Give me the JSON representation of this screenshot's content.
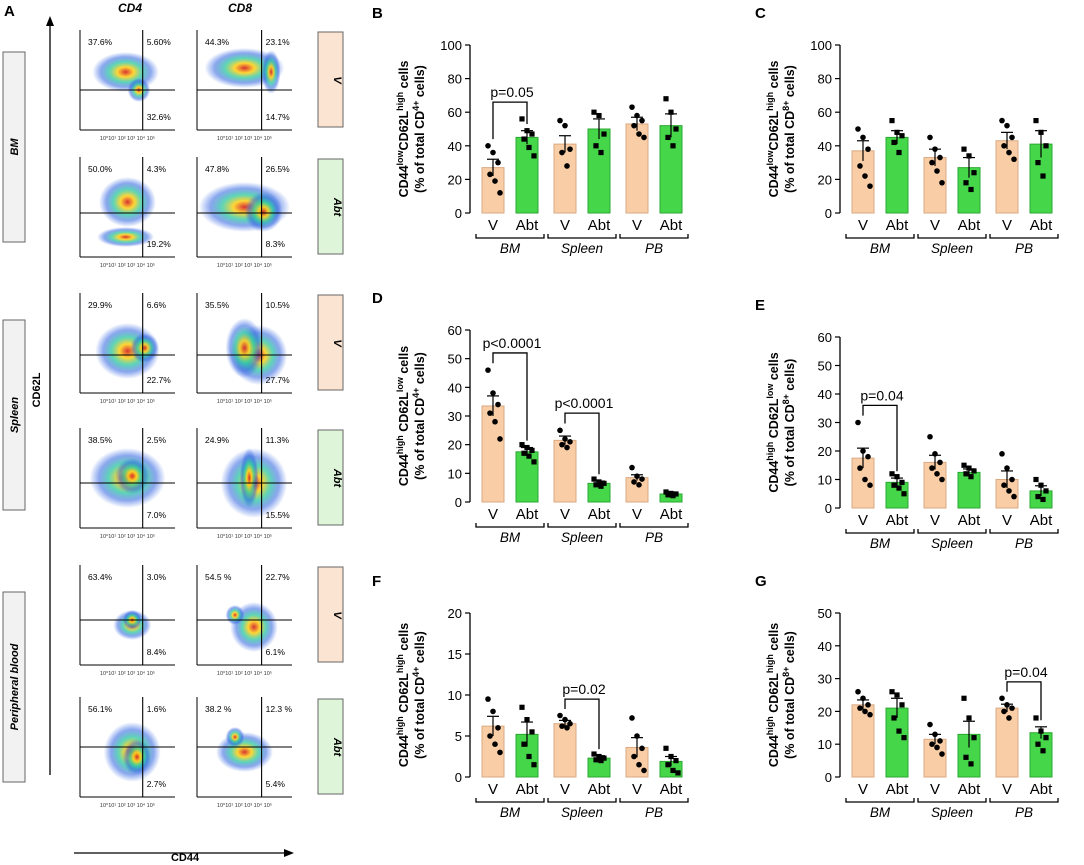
{
  "colors": {
    "vehicle_fill": "#f9cda5",
    "vehicle_stroke": "#d9a982",
    "abt_fill": "#45d64a",
    "abt_stroke": "#2aa830",
    "axis": "#000000",
    "group_label_bg": "#f2f2f2",
    "v_label_bg": "#fce4d2",
    "abt_label_bg": "#dff5d9"
  },
  "panel_a": {
    "letter": "A",
    "col_labels": [
      "CD4",
      "CD8"
    ],
    "y_axis_label": "CD62L",
    "x_axis_label": "CD44",
    "tick_label": "10⁰10¹ 10² 10³ 10⁴ 10⁵",
    "groups": [
      {
        "label": "BM",
        "name": "group-label-bm"
      },
      {
        "label": "Spleen",
        "name": "group-label-spleen"
      },
      {
        "label": "Peripheral blood",
        "name": "group-label-peripheral-blood"
      }
    ],
    "rows": [
      {
        "treatment": "V",
        "cd4": {
          "ul": "37.6%",
          "ur": "5.60%",
          "lr": "32.6%"
        },
        "cd8": {
          "ul": "44.3%",
          "ur": "23.1%",
          "lr": "14.7%"
        }
      },
      {
        "treatment": "Abt",
        "cd4": {
          "ul": "50.0%",
          "ur": "4.3%",
          "lr": "19.2%"
        },
        "cd8": {
          "ul": "47.8%",
          "ur": "26.5%",
          "lr": "8.3%"
        }
      },
      {
        "treatment": "V",
        "cd4": {
          "ul": "29.9%",
          "ur": "6.6%",
          "lr": "22.7%"
        },
        "cd8": {
          "ul": "35.5%",
          "ur": "10.5%",
          "lr": "27.7%"
        }
      },
      {
        "treatment": "Abt",
        "cd4": {
          "ul": "38.5%",
          "ur": "2.5%",
          "lr": "7.0%"
        },
        "cd8": {
          "ul": "24.9%",
          "ur": "11.3%",
          "lr": "15.5%"
        }
      },
      {
        "treatment": "V",
        "cd4": {
          "ul": "63.4%",
          "ur": "3.0%",
          "lr": "8.4%"
        },
        "cd8": {
          "ul": "54.5 %",
          "ur": "22.7%",
          "lr": "6.1%"
        }
      },
      {
        "treatment": "Abt",
        "cd4": {
          "ul": "56.1%",
          "ur": "1.6%",
          "lr": "2.7%"
        },
        "cd8": {
          "ul": "38.2 %",
          "ur": "12.3 %",
          "lr": "5.4%"
        }
      }
    ]
  },
  "chart_data": [
    {
      "panel": "B",
      "type": "bar",
      "ylabel": "CD44lowCD62Lhigh cells (% of total CD4+ cells)",
      "ylabel_parts": {
        "pre": "CD44",
        "sup1": "low",
        "mid": "CD62L",
        "sup2": "high",
        "post": " cells"
      },
      "ylabel_line2": {
        "pre": "(% of total CD",
        "sup": "4+",
        "post": " cells)"
      },
      "ylim": [
        0,
        100
      ],
      "yticks": [
        0,
        20,
        40,
        60,
        80,
        100
      ],
      "groups": [
        "BM",
        "Spleen",
        "PB"
      ],
      "bar_labels": [
        "V",
        "Abt"
      ],
      "series": [
        {
          "name": "V",
          "values": [
            27,
            41,
            53
          ],
          "errors": [
            5,
            5,
            4
          ]
        },
        {
          "name": "Abt",
          "values": [
            45,
            50,
            52
          ],
          "errors": [
            4,
            6,
            7
          ]
        }
      ],
      "points": {
        "V": [
          [
            40,
            36,
            30,
            23,
            19,
            12
          ],
          [
            55,
            52,
            38,
            36,
            28
          ],
          [
            63,
            58,
            55,
            52,
            47,
            45
          ]
        ],
        "Abt": [
          [
            56,
            49,
            47,
            44,
            39,
            34
          ],
          [
            60,
            58,
            47,
            40,
            36
          ],
          [
            68,
            60,
            50,
            45,
            40
          ]
        ]
      },
      "annotations": [
        {
          "text": "p=0.05",
          "group": 0
        }
      ]
    },
    {
      "panel": "C",
      "type": "bar",
      "ylabel": "CD44lowCD62Lhigh cells (% of total CD8+ cells)",
      "ylabel_parts": {
        "pre": "CD44",
        "sup1": "low",
        "mid": "CD62L",
        "sup2": "high",
        "post": " cells"
      },
      "ylabel_line2": {
        "pre": "(% of total CD",
        "sup": "8+",
        "post": " cells)"
      },
      "ylim": [
        0,
        100
      ],
      "yticks": [
        0,
        20,
        40,
        60,
        80,
        100
      ],
      "groups": [
        "BM",
        "Spleen",
        "PB"
      ],
      "bar_labels": [
        "V",
        "Abt"
      ],
      "series": [
        {
          "name": "V",
          "values": [
            37,
            33,
            43
          ],
          "errors": [
            6,
            5,
            5
          ]
        },
        {
          "name": "Abt",
          "values": [
            45,
            27,
            41
          ],
          "errors": [
            4,
            6,
            8
          ]
        }
      ],
      "points": {
        "V": [
          [
            50,
            45,
            38,
            28,
            22,
            16
          ],
          [
            45,
            38,
            33,
            30,
            25,
            18
          ],
          [
            55,
            52,
            45,
            40,
            36,
            32
          ]
        ],
        "Abt": [
          [
            55,
            48,
            46,
            42,
            36
          ],
          [
            38,
            34,
            24,
            18,
            14
          ],
          [
            55,
            48,
            40,
            30,
            22
          ]
        ]
      },
      "annotations": []
    },
    {
      "panel": "D",
      "type": "bar",
      "ylabel": "CD44high CD62Llow cells (% of total CD4+ cells)",
      "ylabel_parts": {
        "pre": "CD44",
        "sup1": "high",
        "mid": " CD62L",
        "sup2": "low",
        "post": " cells"
      },
      "ylabel_line2": {
        "pre": "(% of total CD",
        "sup": "4+",
        "post": " cells)"
      },
      "ylim": [
        0,
        60
      ],
      "yticks": [
        0,
        10,
        20,
        30,
        40,
        50,
        60
      ],
      "groups": [
        "BM",
        "Spleen",
        "PB"
      ],
      "bar_labels": [
        "V",
        "Abt"
      ],
      "series": [
        {
          "name": "V",
          "values": [
            33.5,
            21.5,
            8.5
          ],
          "errors": [
            3.5,
            1.5,
            1
          ]
        },
        {
          "name": "Abt",
          "values": [
            17.5,
            6.5,
            2.8
          ],
          "errors": [
            1.5,
            0.8,
            0.4
          ]
        }
      ],
      "points": {
        "V": [
          [
            46,
            38,
            34,
            31,
            28,
            22
          ],
          [
            25,
            22,
            21,
            20,
            19
          ],
          [
            12,
            9,
            8,
            7,
            6
          ]
        ],
        "Abt": [
          [
            20,
            19,
            18,
            17,
            16,
            14
          ],
          [
            8,
            7,
            6.5,
            6,
            5.5
          ],
          [
            3.5,
            3,
            2.8,
            2.5,
            2.2
          ]
        ]
      },
      "annotations": [
        {
          "text": "p<0.0001",
          "group": 0
        },
        {
          "text": "p<0.0001",
          "group": 1
        }
      ]
    },
    {
      "panel": "E",
      "type": "bar",
      "ylabel": "CD44high CD62Llow cells (% of total CD8+ cells)",
      "ylabel_parts": {
        "pre": "CD44",
        "sup1": "high",
        "mid": " CD62L",
        "sup2": "low",
        "post": " cells"
      },
      "ylabel_line2": {
        "pre": "(% of total CD",
        "sup": "8+",
        "post": " cells)"
      },
      "ylim": [
        0,
        60
      ],
      "yticks": [
        0,
        10,
        20,
        30,
        40,
        50,
        60
      ],
      "groups": [
        "BM",
        "Spleen",
        "PB"
      ],
      "bar_labels": [
        "V",
        "Abt"
      ],
      "series": [
        {
          "name": "V",
          "values": [
            17.5,
            16,
            10
          ],
          "errors": [
            3.5,
            2.5,
            3
          ]
        },
        {
          "name": "Abt",
          "values": [
            9,
            12.5,
            6
          ],
          "errors": [
            1.5,
            1.2,
            1.8
          ]
        }
      ],
      "points": {
        "V": [
          [
            30,
            20,
            18,
            14,
            10,
            8
          ],
          [
            25,
            19,
            16,
            14,
            12,
            10
          ],
          [
            19,
            14,
            10,
            8,
            6,
            4
          ]
        ],
        "Abt": [
          [
            12,
            11,
            9,
            8,
            7,
            5
          ],
          [
            15,
            14,
            13,
            12,
            11
          ],
          [
            10,
            8,
            6,
            4,
            3
          ]
        ]
      },
      "annotations": [
        {
          "text": "p=0.04",
          "group": 0
        }
      ]
    },
    {
      "panel": "F",
      "type": "bar",
      "ylabel": "CD44high CD62Lhigh cells (% of total CD4+ cells)",
      "ylabel_parts": {
        "pre": "CD44",
        "sup1": "high",
        "mid": " CD62L",
        "sup2": "high",
        "post": " cells"
      },
      "ylabel_line2": {
        "pre": "(% of total CD",
        "sup": "4+",
        "post": " cells)"
      },
      "ylim": [
        0,
        20
      ],
      "yticks": [
        0,
        5,
        10,
        15,
        20
      ],
      "groups": [
        "BM",
        "Spleen",
        "PB"
      ],
      "bar_labels": [
        "V",
        "Abt"
      ],
      "series": [
        {
          "name": "V",
          "values": [
            6.2,
            6.5,
            3.6
          ],
          "errors": [
            1.2,
            0.4,
            1.2
          ]
        },
        {
          "name": "Abt",
          "values": [
            5.2,
            2.3,
            1.9
          ],
          "errors": [
            1.5,
            0.3,
            0.6
          ]
        }
      ],
      "points": {
        "V": [
          [
            9.5,
            8,
            6,
            5,
            4,
            3
          ],
          [
            7.5,
            7,
            6.5,
            6.2,
            6
          ],
          [
            7.2,
            5,
            3.5,
            2.5,
            1.5,
            0.8
          ]
        ],
        "Abt": [
          [
            8.5,
            7,
            5.5,
            4,
            2.5,
            1.5
          ],
          [
            2.8,
            2.5,
            2.3,
            2.1,
            2
          ],
          [
            3.5,
            2.5,
            2,
            1.5,
            0.8,
            0.5
          ]
        ]
      },
      "annotations": [
        {
          "text": "p=0.02",
          "group": 1
        }
      ]
    },
    {
      "panel": "G",
      "type": "bar",
      "ylabel": "CD44high CD62Lhigh cells (% of total CD8+ cells)",
      "ylabel_parts": {
        "pre": "CD44",
        "sup1": "high",
        "mid": " CD62L",
        "sup2": "high",
        "post": " cells"
      },
      "ylabel_line2": {
        "pre": "(% of total CD",
        "sup": "8+",
        "post": " cells)"
      },
      "ylim": [
        0,
        50
      ],
      "yticks": [
        0,
        10,
        20,
        30,
        40,
        50
      ],
      "groups": [
        "BM",
        "Spleen",
        "PB"
      ],
      "bar_labels": [
        "V",
        "Abt"
      ],
      "series": [
        {
          "name": "V",
          "values": [
            22,
            11.5,
            21
          ],
          "errors": [
            1.5,
            1.5,
            1.2
          ]
        },
        {
          "name": "Abt",
          "values": [
            21,
            13,
            13.5
          ],
          "errors": [
            3,
            4,
            1.8
          ]
        }
      ],
      "points": {
        "V": [
          [
            26,
            24,
            22,
            21,
            20,
            19
          ],
          [
            16,
            13,
            11,
            10,
            9,
            7
          ],
          [
            24,
            22,
            21,
            20,
            18
          ]
        ],
        "Abt": [
          [
            26,
            25,
            22,
            18,
            14,
            12
          ],
          [
            24,
            18,
            12,
            6,
            4
          ],
          [
            18,
            14,
            12,
            10,
            8
          ]
        ]
      },
      "annotations": [
        {
          "text": "p=0.04",
          "group": 2
        }
      ]
    }
  ]
}
